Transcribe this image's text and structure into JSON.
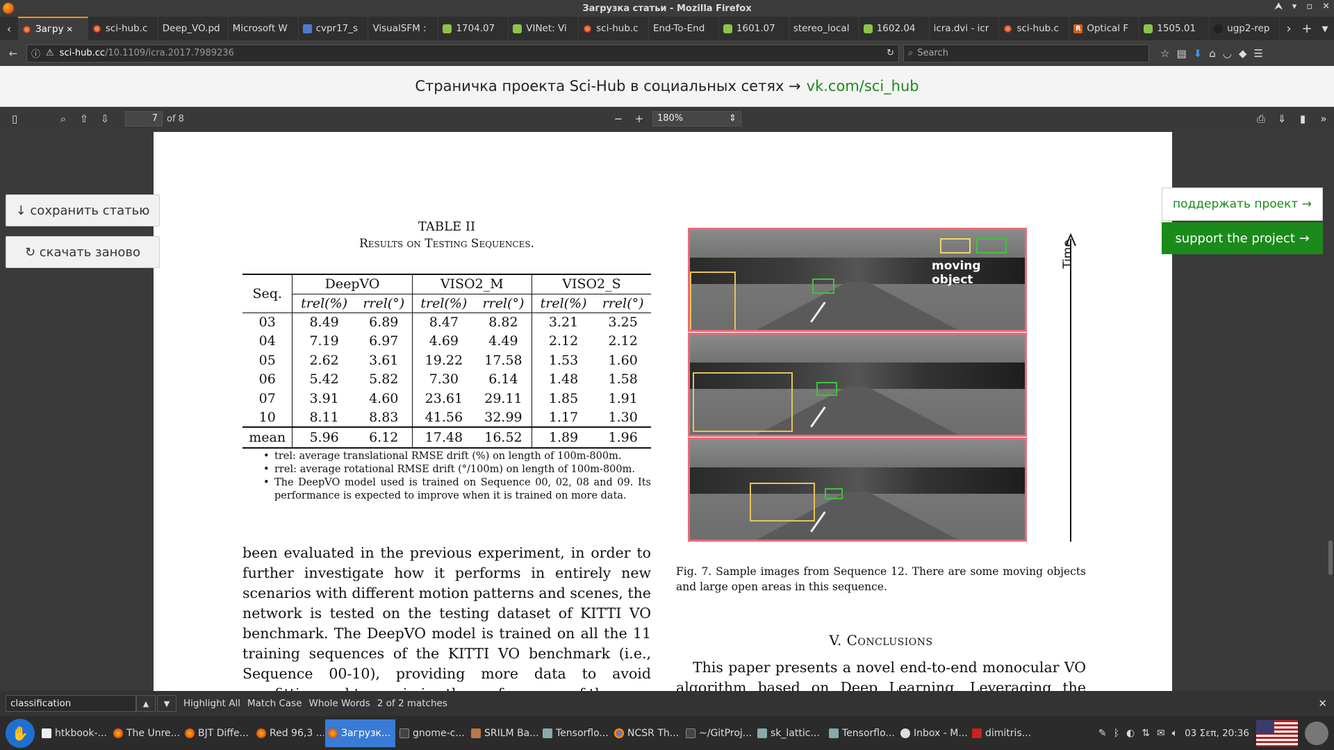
{
  "window": {
    "title": "Загрузка статьи - Mozilla Firefox"
  },
  "tabs": [
    {
      "label": "Загру",
      "icon": "scihub",
      "active": true
    },
    {
      "label": "sci-hub.c",
      "icon": "scihub"
    },
    {
      "label": "Deep_VO.pd",
      "icon": "none"
    },
    {
      "label": "Microsoft W",
      "icon": "none"
    },
    {
      "label": "cvpr17_s",
      "icon": "cvpr"
    },
    {
      "label": "VisualSFM :",
      "icon": "none"
    },
    {
      "label": "1704.07",
      "icon": "arxiv"
    },
    {
      "label": "VINet: Vi",
      "icon": "arxiv"
    },
    {
      "label": "sci-hub.c",
      "icon": "scihub"
    },
    {
      "label": "End-To-End",
      "icon": "none"
    },
    {
      "label": "1601.07",
      "icon": "arxiv"
    },
    {
      "label": "stereo_local",
      "icon": "none"
    },
    {
      "label": "1602.04",
      "icon": "arxiv"
    },
    {
      "label": "icra.dvi - icr",
      "icon": "none"
    },
    {
      "label": "sci-hub.c",
      "icon": "scihub"
    },
    {
      "label": "Optical F",
      "icon": "rg"
    },
    {
      "label": "1505.01",
      "icon": "arxiv"
    },
    {
      "label": "ugp2-rep",
      "icon": "github"
    }
  ],
  "nav": {
    "url_host": "sci-hub.cc",
    "url_path": "/10.1109/icra.2017.7989236",
    "search_placeholder": "Search"
  },
  "banner": {
    "text": "Страничка проекта Sci-Hub в социальных сетях →",
    "link": "vk.com/sci_hub"
  },
  "pdf_toolbar": {
    "page": "7",
    "of_pages": "of 8",
    "zoom": "180%"
  },
  "side_buttons": {
    "save": "↓ сохранить статью",
    "reload": "↻ скачать заново",
    "support_ru": "поддержать проект →",
    "support_en": "support the project →"
  },
  "paper": {
    "table_title": "TABLE II",
    "table_subtitle": "Results on Testing Sequences.",
    "col_seq": "Seq.",
    "groups": [
      "DeepVO",
      "VISO2_M",
      "VISO2_S"
    ],
    "subheaders": [
      "trel(%)",
      "rrel(°)",
      "trel(%)",
      "rrel(°)",
      "trel(%)",
      "rrel(°)"
    ],
    "rows": [
      [
        "03",
        "8.49",
        "6.89",
        "8.47",
        "8.82",
        "3.21",
        "3.25"
      ],
      [
        "04",
        "7.19",
        "6.97",
        "4.69",
        "4.49",
        "2.12",
        "2.12"
      ],
      [
        "05",
        "2.62",
        "3.61",
        "19.22",
        "17.58",
        "1.53",
        "1.60"
      ],
      [
        "06",
        "5.42",
        "5.82",
        "7.30",
        "6.14",
        "1.48",
        "1.58"
      ],
      [
        "07",
        "3.91",
        "4.60",
        "23.61",
        "29.11",
        "1.85",
        "1.91"
      ],
      [
        "10",
        "8.11",
        "8.83",
        "41.56",
        "32.99",
        "1.17",
        "1.30"
      ]
    ],
    "mean_row": [
      "mean",
      "5.96",
      "6.12",
      "17.48",
      "16.52",
      "1.89",
      "1.96"
    ],
    "notes": [
      "trel: average translational RMSE drift (%) on length of 100m-800m.",
      "rrel: average rotational RMSE drift (°/100m) on length of 100m-800m.",
      "The DeepVO model used is trained on Sequence 00, 02, 08 and 09. Its performance is expected to improve when it is trained on more data."
    ],
    "body_text": "been evaluated in the previous experiment, in order to further investigate how it performs in entirely new scenarios with different motion patterns and scenes, the network is tested on the testing dataset of KITTI VO benchmark. The DeepVO model is trained on all the 11 training sequences of the KITTI VO benchmark (i.e., Sequence 00-10), providing more data to avoid overfitting and to maximise the performance of the",
    "figure_label_moving": "moving object",
    "figure_label_time": "Time",
    "figcaption": "Fig. 7.   Sample images from Sequence 12. There are some moving objects and large open areas in this sequence.",
    "section_heading": "V. Conclusions",
    "conclusion_text": "This paper presents a novel end-to-end monocular VO algorithm based on Deep Learning. Leveraging the power of"
  },
  "findbar": {
    "query": "classification",
    "highlight_all": "Highlight All",
    "match_case": "Match Case",
    "whole_words": "Whole Words",
    "status": "2 of 2 matches"
  },
  "taskbar": {
    "items": [
      {
        "label": "htkbook-...",
        "icon": "doc"
      },
      {
        "label": "The Unre...",
        "icon": "firefox"
      },
      {
        "label": "BJT Diffe...",
        "icon": "firefox"
      },
      {
        "label": "Red 96,3 ...",
        "icon": "firefox"
      },
      {
        "label": "Загрузк...",
        "icon": "firefox",
        "active": true
      },
      {
        "label": "gnome-c...",
        "icon": "term"
      },
      {
        "label": "SRILM Ba...",
        "icon": "srilm"
      },
      {
        "label": "Tensorflo...",
        "icon": "folder"
      },
      {
        "label": "NCSR Th...",
        "icon": "chrome"
      },
      {
        "label": "~/GitProj...",
        "icon": "term"
      },
      {
        "label": "sk_lattic...",
        "icon": "folder"
      },
      {
        "label": "Tensorflo...",
        "icon": "folder"
      },
      {
        "label": "Inbox - M...",
        "icon": "mail"
      },
      {
        "label": "dimitris...",
        "icon": "red"
      }
    ],
    "clock": "03 Σεπ, 20:36"
  }
}
